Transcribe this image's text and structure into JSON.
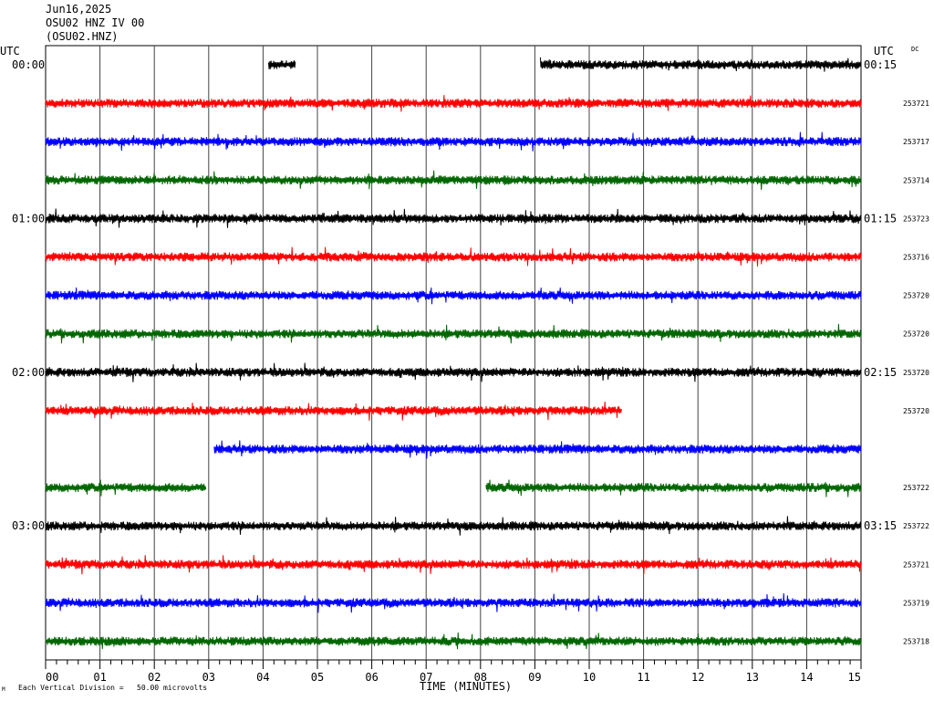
{
  "header": {
    "date": "Jun16,2025",
    "station": "OSU02 HNZ IV 00",
    "code": "(OSU02.HNZ)"
  },
  "left_utc_label": "UTC",
  "right_utc_label": "UTC",
  "dc_label": "DC",
  "footer": {
    "scale_note": "Each Vertical Division =   50.00 microvolts",
    "corner_mark": "M"
  },
  "chart_data": {
    "type": "line",
    "xlabel": "TIME (MINUTES)",
    "xlim": [
      0,
      15
    ],
    "x_ticks": [
      "00",
      "01",
      "02",
      "03",
      "04",
      "05",
      "06",
      "07",
      "08",
      "09",
      "10",
      "11",
      "12",
      "13",
      "14",
      "15"
    ],
    "trace_colors": [
      "#000000",
      "#ff0000",
      "#0000ff",
      "#006600"
    ],
    "rows": [
      {
        "left": "00:00",
        "right": "00:15",
        "dc": "",
        "segments": [
          [
            4.1,
            4.6
          ],
          [
            9.1,
            15
          ]
        ]
      },
      {
        "left": "",
        "right": "",
        "dc": "253721",
        "segments": [
          [
            0,
            15
          ]
        ]
      },
      {
        "left": "",
        "right": "",
        "dc": "253717",
        "segments": [
          [
            0,
            15
          ]
        ]
      },
      {
        "left": "",
        "right": "",
        "dc": "253714",
        "segments": [
          [
            0,
            15
          ]
        ]
      },
      {
        "left": "01:00",
        "right": "01:15",
        "dc": "253723",
        "segments": [
          [
            0,
            15
          ]
        ]
      },
      {
        "left": "",
        "right": "",
        "dc": "253716",
        "segments": [
          [
            0,
            15
          ]
        ]
      },
      {
        "left": "",
        "right": "",
        "dc": "253720",
        "segments": [
          [
            0,
            15
          ]
        ]
      },
      {
        "left": "",
        "right": "",
        "dc": "253720",
        "segments": [
          [
            0,
            15
          ]
        ]
      },
      {
        "left": "02:00",
        "right": "02:15",
        "dc": "253720",
        "segments": [
          [
            0,
            15
          ]
        ]
      },
      {
        "left": "",
        "right": "",
        "dc": "253720",
        "segments": [
          [
            0,
            10.6
          ]
        ]
      },
      {
        "left": "",
        "right": "",
        "dc": "",
        "segments": [
          [
            3.1,
            15
          ]
        ]
      },
      {
        "left": "",
        "right": "",
        "dc": "253722",
        "segments": [
          [
            0,
            2.95
          ],
          [
            8.1,
            15
          ]
        ]
      },
      {
        "left": "03:00",
        "right": "03:15",
        "dc": "253722",
        "segments": [
          [
            0,
            15
          ]
        ]
      },
      {
        "left": "",
        "right": "",
        "dc": "253721",
        "segments": [
          [
            0,
            15
          ]
        ]
      },
      {
        "left": "",
        "right": "",
        "dc": "253719",
        "segments": [
          [
            0,
            15
          ]
        ]
      },
      {
        "left": "",
        "right": "",
        "dc": "253718",
        "segments": [
          [
            0,
            15
          ]
        ]
      }
    ]
  }
}
